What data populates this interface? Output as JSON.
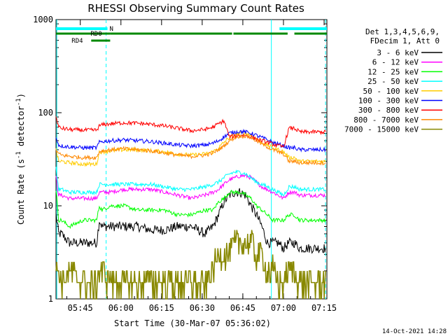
{
  "chart_data": {
    "type": "line",
    "title": "RHESSI Observing Summary Count Rates",
    "xlabel": "Start Time (30-Mar-07 05:36:02)",
    "ylabel": "Count Rate (s⁻¹ detector⁻¹)",
    "ylabel_main": "Count Rate (s",
    "ylabel_sup1": "-1",
    "ylabel_mid": " detector",
    "ylabel_sup2": "-1",
    "ylabel_end": ")",
    "yscale": "log",
    "ylim": [
      1,
      1000
    ],
    "xlim_minutes": [
      0,
      100
    ],
    "y_ticks": [
      {
        "value": 1,
        "label": "1"
      },
      {
        "value": 10,
        "label": "10"
      },
      {
        "value": 100,
        "label": "100"
      },
      {
        "value": 1000,
        "label": "1000"
      }
    ],
    "x_ticks": [
      {
        "minute": 8.97,
        "label": "05:45"
      },
      {
        "minute": 23.97,
        "label": "06:00"
      },
      {
        "minute": 38.97,
        "label": "06:15"
      },
      {
        "minute": 53.97,
        "label": "06:30"
      },
      {
        "minute": 68.97,
        "label": "06:45"
      },
      {
        "minute": 83.97,
        "label": "07:00"
      },
      {
        "minute": 98.97,
        "label": "07:15"
      }
    ],
    "legend_header": [
      "Det 1,3,4,5,6,9,",
      "FDecim 1, Att 0"
    ],
    "series": [
      {
        "name": "3 - 6 keV",
        "color": "#000000",
        "x": [
          0,
          1,
          2,
          5,
          10,
          14,
          15,
          16,
          17,
          20,
          25,
          30,
          35,
          40,
          45,
          50,
          55,
          58,
          60,
          62,
          64,
          66,
          68,
          70,
          72,
          74,
          76,
          78,
          80,
          82,
          84,
          86,
          88,
          90,
          95,
          99.5
        ],
        "values": [
          8,
          5,
          5,
          4,
          4,
          4,
          4,
          7,
          6,
          6,
          6,
          6,
          5.5,
          5.5,
          6,
          6,
          5,
          6,
          8,
          11,
          13,
          14,
          14,
          13,
          10,
          8,
          6,
          4,
          4,
          4,
          3.5,
          4,
          4,
          3.5,
          3.5,
          3.5
        ]
      },
      {
        "name": "6 - 12 keV",
        "color": "#ff00ff",
        "x": [
          0,
          1,
          2,
          5,
          10,
          14,
          15,
          16,
          17,
          20,
          25,
          30,
          35,
          40,
          45,
          50,
          55,
          58,
          60,
          62,
          64,
          66,
          68,
          70,
          72,
          74,
          76,
          78,
          80,
          82,
          84,
          86,
          88,
          90,
          95,
          99.5
        ],
        "values": [
          20,
          13,
          13,
          12,
          12,
          12,
          12,
          14,
          14,
          14,
          15,
          15,
          15,
          14,
          13,
          12,
          13,
          14,
          15,
          17,
          19,
          20,
          21,
          21,
          20,
          18,
          16,
          15,
          14,
          13,
          12,
          14,
          14,
          13,
          13,
          13
        ]
      },
      {
        "name": "12 - 25 keV",
        "color": "#00ff00",
        "x": [
          0,
          1,
          2,
          5,
          10,
          14,
          15,
          16,
          17,
          20,
          25,
          30,
          35,
          40,
          45,
          50,
          55,
          58,
          60,
          62,
          64,
          66,
          68,
          70,
          72,
          74,
          76,
          78,
          80,
          82,
          84,
          86,
          88,
          90,
          95,
          99.5
        ],
        "values": [
          15,
          7,
          7,
          6,
          7,
          7,
          7,
          10,
          9,
          10,
          10,
          9,
          9,
          9,
          8,
          8,
          9,
          9,
          11,
          12,
          14,
          14,
          14,
          13,
          12,
          10,
          9,
          8,
          7,
          7,
          7,
          8,
          8,
          7,
          7,
          7
        ]
      },
      {
        "name": "25 - 50 keV",
        "color": "#00ffff",
        "x": [
          0,
          1,
          2,
          5,
          10,
          14,
          15,
          16,
          17,
          20,
          25,
          30,
          35,
          40,
          45,
          50,
          55,
          58,
          60,
          62,
          64,
          66,
          68,
          70,
          72,
          74,
          76,
          78,
          80,
          82,
          84,
          86,
          88,
          90,
          95,
          99.5
        ],
        "values": [
          25,
          15,
          15,
          14,
          14,
          14,
          14,
          17,
          17,
          17,
          17,
          17,
          17,
          16,
          15,
          15,
          16,
          17,
          18,
          20,
          22,
          23,
          23,
          22,
          20,
          18,
          17,
          16,
          15,
          14,
          13,
          16,
          16,
          15,
          15,
          15
        ]
      },
      {
        "name": "50 - 100 keV",
        "color": "#ffcc00",
        "x": [
          0,
          1,
          2,
          5,
          10,
          14,
          15,
          16,
          17,
          20,
          25,
          30,
          35,
          40,
          45,
          50,
          55,
          58,
          60,
          62,
          64,
          66,
          68,
          70,
          72,
          74,
          76,
          78,
          80,
          82,
          84,
          86,
          88,
          90,
          95,
          99.5
        ],
        "values": [
          40,
          30,
          30,
          29,
          28,
          28,
          28,
          38,
          38,
          39,
          40,
          40,
          39,
          38,
          36,
          35,
          36,
          38,
          42,
          48,
          54,
          58,
          60,
          60,
          57,
          52,
          48,
          45,
          42,
          40,
          38,
          33,
          33,
          30,
          30,
          30
        ]
      },
      {
        "name": "100 - 300 keV",
        "color": "#0000ff",
        "x": [
          0,
          1,
          2,
          5,
          10,
          14,
          15,
          16,
          17,
          20,
          25,
          30,
          35,
          40,
          45,
          50,
          55,
          58,
          60,
          62,
          64,
          66,
          68,
          70,
          72,
          74,
          76,
          78,
          80,
          82,
          84,
          86,
          88,
          90,
          95,
          99.5
        ],
        "values": [
          55,
          45,
          44,
          43,
          42,
          42,
          42,
          48,
          49,
          50,
          51,
          50,
          49,
          47,
          45,
          44,
          45,
          47,
          50,
          55,
          60,
          62,
          63,
          62,
          60,
          57,
          54,
          51,
          48,
          46,
          44,
          42,
          42,
          40,
          40,
          40
        ]
      },
      {
        "name": "300 - 800 keV",
        "color": "#ff0000",
        "x": [
          0,
          1,
          2,
          5,
          10,
          14,
          15,
          16,
          17,
          20,
          25,
          30,
          35,
          40,
          45,
          50,
          55,
          58,
          60,
          62,
          64,
          66,
          68,
          70,
          72,
          74,
          76,
          78,
          80,
          82,
          84,
          86,
          88,
          90,
          95,
          99.5
        ],
        "values": [
          90,
          70,
          68,
          66,
          65,
          65,
          65,
          72,
          74,
          76,
          78,
          77,
          75,
          72,
          68,
          64,
          66,
          70,
          76,
          82,
          55,
          56,
          57,
          57,
          55,
          52,
          50,
          48,
          46,
          44,
          43,
          68,
          68,
          62,
          62,
          62
        ]
      },
      {
        "name": "800 - 7000 keV",
        "color": "#ff8800",
        "x": [
          0,
          1,
          2,
          5,
          10,
          14,
          15,
          16,
          17,
          20,
          25,
          30,
          35,
          40,
          45,
          50,
          55,
          58,
          60,
          62,
          64,
          66,
          68,
          70,
          72,
          74,
          76,
          78,
          80,
          82,
          84,
          86,
          88,
          90,
          95,
          99.5
        ],
        "values": [
          40,
          36,
          35,
          34,
          33,
          33,
          33,
          38,
          39,
          40,
          41,
          40,
          39,
          37,
          35,
          34,
          35,
          37,
          40,
          44,
          50,
          54,
          56,
          56,
          54,
          50,
          46,
          43,
          40,
          38,
          36,
          30,
          30,
          29,
          29,
          29
        ]
      },
      {
        "name": "7000 - 15000 keV",
        "color": "#888800",
        "x": [
          0,
          1,
          2,
          5,
          10,
          14,
          15,
          16,
          17,
          20,
          25,
          30,
          35,
          40,
          45,
          50,
          55,
          58,
          60,
          62,
          64,
          66,
          68,
          70,
          72,
          74,
          76,
          78,
          80,
          82,
          84,
          86,
          88,
          90,
          95,
          99.5
        ],
        "values": [
          2,
          2,
          1.5,
          2,
          1.5,
          1.5,
          1.5,
          2,
          2,
          1.5,
          1.5,
          1.5,
          1.5,
          1.5,
          1.5,
          1.5,
          1.5,
          2,
          3,
          3,
          3,
          4,
          4,
          4,
          4,
          3,
          3,
          2,
          2,
          1.5,
          1.5,
          2,
          2,
          1.5,
          1.5,
          1.5
        ]
      }
    ],
    "annotations": {
      "flags": [
        {
          "label": "RD0",
          "color": "#008800",
          "segments": [
            [
              0,
              20
            ],
            [
              20,
              65
            ],
            [
              65.5,
              85.5
            ],
            [
              88,
              100
            ]
          ]
        },
        {
          "label": "RD4",
          "color": "#008800",
          "segments": [
            [
              13,
              20
            ]
          ]
        },
        {
          "label": "N",
          "color": "#00ffff",
          "segments": [
            [
              0,
              19
            ],
            [
              82.5,
              100
            ]
          ]
        }
      ],
      "vlines": [
        {
          "minute": 0.3,
          "style": "solid",
          "color": "#00ffff"
        },
        {
          "minute": 18.5,
          "style": "dashed",
          "color": "#00ffff"
        },
        {
          "minute": 79.5,
          "style": "solid",
          "color": "#00ffff"
        },
        {
          "minute": 99.5,
          "style": "dashed",
          "color": "#00ffff"
        }
      ]
    },
    "timestamp": "14-Oct-2021 14:28"
  }
}
